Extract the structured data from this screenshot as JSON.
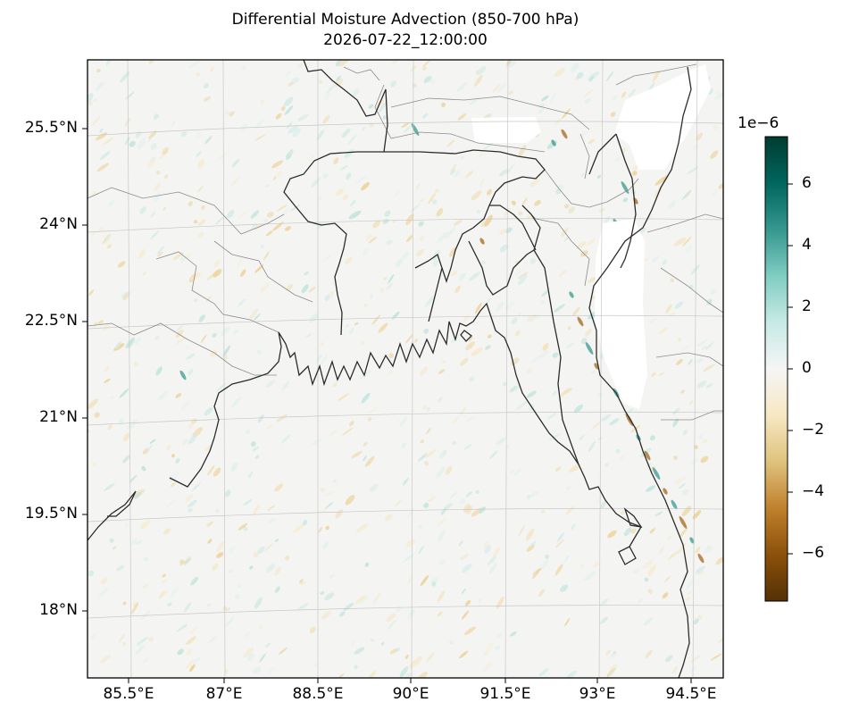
{
  "map": {
    "title": "Differential Moisture Advection (850-700 hPa)",
    "subtitle": "2026-07-22_12:00:00",
    "lat_labels": [
      "25.5°N",
      "24°N",
      "22.5°N",
      "21°N",
      "19.5°N",
      "18°N"
    ],
    "lon_labels": [
      "85.5°E",
      "87°E",
      "88.5°E",
      "90°E",
      "91.5°E",
      "93°E",
      "94.5°E"
    ],
    "extent": {
      "lon": [
        84.9,
        94.9
      ],
      "lat": [
        16.8,
        26.6
      ]
    },
    "field_colormap": "BrBG"
  },
  "colorbar": {
    "exponent": "1e−6",
    "ticks": [
      "6",
      "4",
      "2",
      "0",
      "−2",
      "−4",
      "−6"
    ],
    "range": [
      -7.5,
      7.5
    ],
    "colors": [
      "#543005",
      "#8c510a",
      "#bf812d",
      "#dfc27d",
      "#f6e8c3",
      "#f5f5f5",
      "#c7eae5",
      "#80cdc1",
      "#35978f",
      "#01665e",
      "#003c30"
    ]
  }
}
